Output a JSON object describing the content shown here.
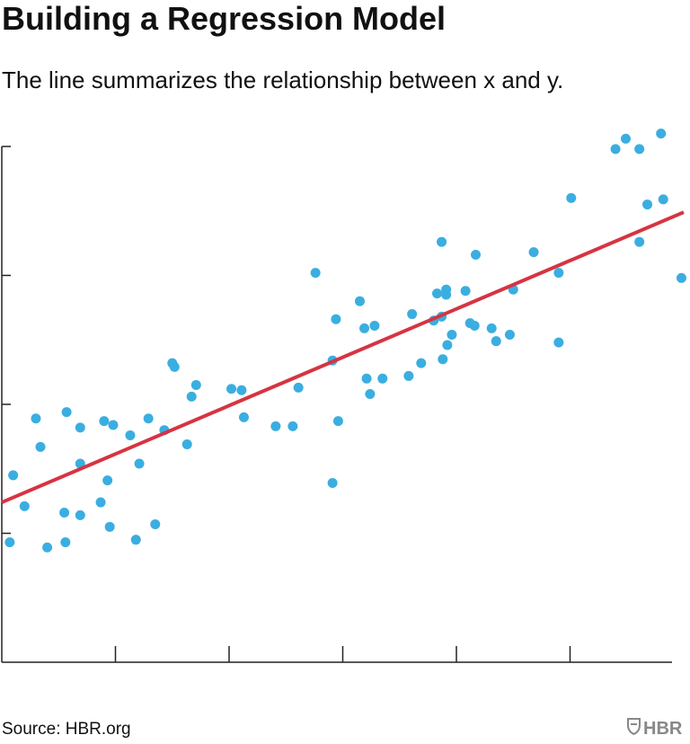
{
  "chart_data": {
    "type": "scatter",
    "title": "Building a Regression Model",
    "subtitle": "The line summarizes the relationship between x and y.",
    "source": "Source: HBR.org",
    "logo": "HBR",
    "color": "#3aaee0",
    "xlim": [
      0,
      6
    ],
    "ylim": [
      0,
      4
    ],
    "xticks": [
      1,
      2,
      3,
      4,
      5
    ],
    "yticks": [
      1,
      2,
      3,
      4
    ],
    "x": [
      0.07,
      0.1,
      0.2,
      0.3,
      0.34,
      0.4,
      0.56,
      0.55,
      0.57,
      0.69,
      0.69,
      0.69,
      0.87,
      0.9,
      0.93,
      0.95,
      0.98,
      1.13,
      1.18,
      1.21,
      1.29,
      1.35,
      1.43,
      1.5,
      1.52,
      1.63,
      1.67,
      1.71,
      2.02,
      2.11,
      2.13,
      2.41,
      2.56,
      2.61,
      2.76,
      2.91,
      2.91,
      2.94,
      2.96,
      3.15,
      3.19,
      3.21,
      3.24,
      3.28,
      3.35,
      3.58,
      3.61,
      3.69,
      3.8,
      3.83,
      3.87,
      3.87,
      3.88,
      3.91,
      3.91,
      3.92,
      3.96,
      4.08,
      4.12,
      4.16,
      4.17,
      4.31,
      4.35,
      4.47,
      4.5,
      4.68,
      4.9,
      4.9,
      5.01,
      5.4,
      5.49,
      5.61,
      5.61,
      5.68,
      5.8,
      5.82,
      5.98
    ],
    "values": [
      0.93,
      1.45,
      1.21,
      1.89,
      1.67,
      0.89,
      0.93,
      1.16,
      1.94,
      1.14,
      1.54,
      1.82,
      1.24,
      1.87,
      1.41,
      1.05,
      1.84,
      1.76,
      0.95,
      1.54,
      1.89,
      1.07,
      1.8,
      2.32,
      2.29,
      1.69,
      2.06,
      2.15,
      2.12,
      2.11,
      1.9,
      1.83,
      1.83,
      2.13,
      3.02,
      2.34,
      1.39,
      2.66,
      1.87,
      2.8,
      2.59,
      2.2,
      2.08,
      2.61,
      2.2,
      2.22,
      2.7,
      2.32,
      2.65,
      2.86,
      2.68,
      3.26,
      2.35,
      2.89,
      2.85,
      2.46,
      2.54,
      2.88,
      2.63,
      2.61,
      3.16,
      2.59,
      2.49,
      2.54,
      2.89,
      3.18,
      3.02,
      2.48,
      3.6,
      3.98,
      4.06,
      3.98,
      3.26,
      3.55,
      4.1,
      3.59,
      2.98
    ],
    "trendline": {
      "color": "#d63442",
      "x": [
        0,
        6
      ],
      "y": [
        1.24,
        3.49
      ]
    }
  }
}
